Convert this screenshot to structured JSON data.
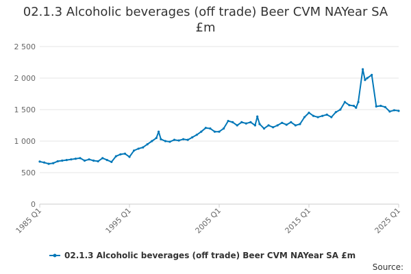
{
  "colors": {
    "series": "#0077b8",
    "grid": "#e6e6e6",
    "axis": "#cccccc",
    "text": "#333333",
    "tick_text": "#666666"
  },
  "source_label": "Source:",
  "chart_data": {
    "type": "line",
    "title": "02.1.3 Alcoholic beverages (off trade) Beer CVM NAYear SA £m",
    "xlabel": "",
    "ylabel": "",
    "ylim": [
      0,
      2500
    ],
    "yticks": [
      0,
      500,
      1000,
      1500,
      2000,
      2500
    ],
    "ytick_labels": [
      "0",
      "500",
      "1 000",
      "1 500",
      "2 000",
      "2 500"
    ],
    "xticks": [
      1985,
      1995,
      2005,
      2015,
      2025
    ],
    "xtick_labels": [
      "1985 Q1",
      "1995 Q1",
      "2005 Q1",
      "2015 Q1",
      "2025 Q1"
    ],
    "xlim": [
      1985,
      2025
    ],
    "grid": true,
    "legend_position": "bottom",
    "series": [
      {
        "name": "02.1.3 Alcoholic beverages (off trade) Beer CVM NAYear SA £m",
        "x": [
          1985.0,
          1985.5,
          1986.0,
          1986.5,
          1987.0,
          1987.5,
          1988.0,
          1988.5,
          1989.0,
          1989.5,
          1990.0,
          1990.5,
          1991.0,
          1991.5,
          1992.0,
          1992.5,
          1993.0,
          1993.5,
          1994.0,
          1994.5,
          1995.0,
          1995.5,
          1996.0,
          1996.5,
          1997.0,
          1997.5,
          1998.0,
          1998.25,
          1998.5,
          1999.0,
          1999.5,
          2000.0,
          2000.5,
          2001.0,
          2001.5,
          2002.0,
          2002.5,
          2003.0,
          2003.5,
          2004.0,
          2004.5,
          2005.0,
          2005.5,
          2006.0,
          2006.5,
          2007.0,
          2007.5,
          2008.0,
          2008.5,
          2009.0,
          2009.25,
          2009.5,
          2010.0,
          2010.5,
          2011.0,
          2011.5,
          2012.0,
          2012.5,
          2013.0,
          2013.5,
          2014.0,
          2014.5,
          2015.0,
          2015.5,
          2016.0,
          2016.5,
          2017.0,
          2017.5,
          2018.0,
          2018.5,
          2019.0,
          2019.5,
          2020.0,
          2020.25,
          2020.5,
          2021.0,
          2021.25,
          2021.5,
          2022.0,
          2022.5,
          2023.0,
          2023.5,
          2024.0,
          2024.5,
          2025.0
        ],
        "values": [
          675,
          660,
          640,
          650,
          680,
          690,
          700,
          710,
          720,
          730,
          690,
          710,
          690,
          680,
          730,
          700,
          670,
          760,
          790,
          800,
          750,
          850,
          880,
          900,
          950,
          1000,
          1050,
          1150,
          1030,
          1000,
          990,
          1020,
          1010,
          1030,
          1020,
          1060,
          1100,
          1150,
          1210,
          1200,
          1150,
          1150,
          1200,
          1320,
          1300,
          1250,
          1300,
          1280,
          1300,
          1250,
          1390,
          1270,
          1200,
          1250,
          1220,
          1250,
          1290,
          1260,
          1300,
          1250,
          1270,
          1380,
          1450,
          1400,
          1380,
          1400,
          1420,
          1380,
          1460,
          1500,
          1620,
          1570,
          1560,
          1530,
          1620,
          2140,
          1970,
          2000,
          2050,
          1550,
          1560,
          1540,
          1470,
          1490,
          1480
        ]
      }
    ]
  }
}
